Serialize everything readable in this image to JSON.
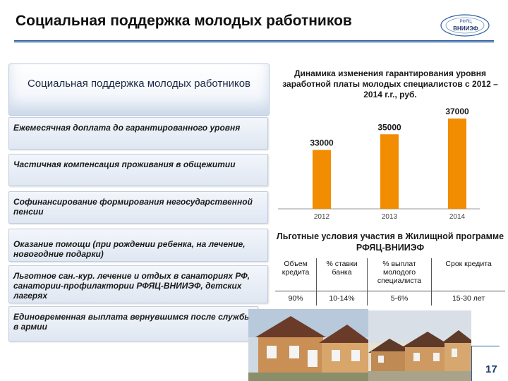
{
  "header": {
    "title": "Социальная поддержка молодых работников",
    "logo_top": "РФЯЦ",
    "logo_main": "ВНИИЭФ"
  },
  "left_panel": {
    "heading": "Социальная поддержка молодых работников",
    "items": [
      "Ежемесячная доплата до гарантированного уровня",
      "Частичная компенсация проживания в общежитии",
      "Софинансирование формирования негосударственной пенсии",
      "Оказание помощи (при рождении ребенка, на лечение,  новогодние подарки)",
      "Льготное сан.-кур. лечение и отдых в санаториях РФ, санатории-профилактории РФЯЦ-ВНИИЭФ, детских лагерях",
      "Единовременная выплата вернувшимся после службы в армии"
    ]
  },
  "chart_data": {
    "type": "bar",
    "title": "Динамика изменения гарантирования уровня заработной платы молодых специалистов с 2012 – 2014 г.г., руб.",
    "categories": [
      "2012",
      "2013",
      "2014"
    ],
    "values": [
      33000,
      35000,
      37000
    ],
    "value_labels": [
      "33000",
      "35000",
      "37000"
    ],
    "ylim": [
      30000,
      37000
    ],
    "bar_color": "#f28c00",
    "grid": false,
    "legend": false
  },
  "conditions": {
    "title": "Льготные условия участия в Жилищной программе РФЯЦ-ВНИИЭФ",
    "columns": [
      "Объем кредита",
      "% ставки банка",
      "% выплат молодого специалиста",
      "Срок кредита"
    ],
    "values": [
      "90%",
      "10-14%",
      "5-6%",
      "15-30 лет"
    ]
  },
  "footer": {
    "slide_number": "17"
  },
  "colors": {
    "accent": "#2f5fa0",
    "bar": "#f28c00"
  }
}
